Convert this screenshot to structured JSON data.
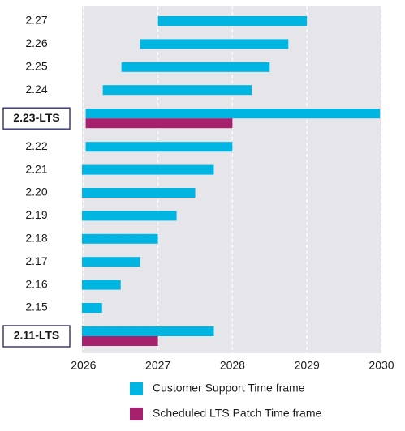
{
  "chart_data": {
    "type": "gantt",
    "categories": [
      "2.27",
      "2.26",
      "2.25",
      "2.24",
      "2.23-LTS",
      "2.22",
      "2.21",
      "2.20",
      "2.19",
      "2.18",
      "2.17",
      "2.16",
      "2.15",
      "2.11-LTS"
    ],
    "series": [
      {
        "name": "Customer Support Time frame",
        "color": "#00b5e2",
        "start": [
          2027.0,
          2026.76,
          2026.51,
          2026.26,
          2026.03,
          2026.03,
          2025.98,
          2025.98,
          2025.98,
          2025.98,
          2025.98,
          2025.98,
          2025.98,
          2025.98
        ],
        "end": [
          2029.0,
          2028.75,
          2028.5,
          2028.26,
          2029.98,
          2028.0,
          2027.75,
          2027.5,
          2027.25,
          2027.0,
          2026.76,
          2026.5,
          2026.25,
          2027.75
        ]
      },
      {
        "name": "Scheduled LTS Patch Time frame",
        "color": "#a6206e",
        "start": [
          null,
          null,
          null,
          null,
          2026.03,
          null,
          null,
          null,
          null,
          null,
          null,
          null,
          null,
          2025.98
        ],
        "end": [
          null,
          null,
          null,
          null,
          2028.0,
          null,
          null,
          null,
          null,
          null,
          null,
          null,
          null,
          2027.0
        ]
      }
    ],
    "xlim": [
      2025.98,
      2030
    ],
    "xticks": [
      2026,
      2027,
      2028,
      2029,
      2030
    ],
    "grid": true
  }
}
